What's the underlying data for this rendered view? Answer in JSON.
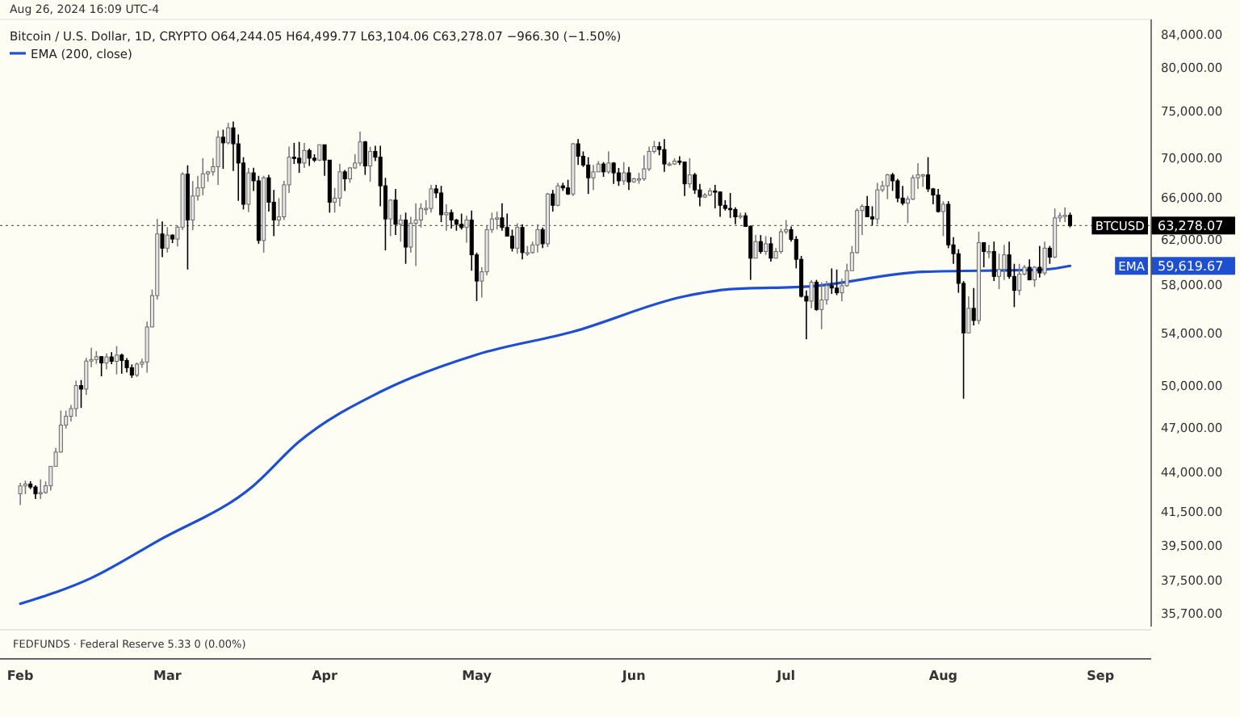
{
  "chart_data": {
    "type": "candlestick",
    "subtitle": "Aug 26, 2024 16:09 UTC-4",
    "title": "Bitcoin / U.S. Dollar, 1D, CRYPTO  O64,244.05 H64,499.77 L63,104.06 C63,278.07 −966.30 (−1.50%)",
    "x": [
      "2024-02-01",
      "2024-02-02",
      "2024-02-03",
      "2024-02-04",
      "2024-02-05",
      "2024-02-06",
      "2024-02-07",
      "2024-02-08",
      "2024-02-09",
      "2024-02-10",
      "2024-02-11",
      "2024-02-12",
      "2024-02-13",
      "2024-02-14",
      "2024-02-15",
      "2024-02-16",
      "2024-02-17",
      "2024-02-18",
      "2024-02-19",
      "2024-02-20",
      "2024-02-21",
      "2024-02-22",
      "2024-02-23",
      "2024-02-24",
      "2024-02-25",
      "2024-02-26",
      "2024-02-27",
      "2024-02-28",
      "2024-02-29",
      "2024-03-01",
      "2024-03-02",
      "2024-03-03",
      "2024-03-04",
      "2024-03-05",
      "2024-03-06",
      "2024-03-07",
      "2024-03-08",
      "2024-03-09",
      "2024-03-10",
      "2024-03-11",
      "2024-03-12",
      "2024-03-13",
      "2024-03-14",
      "2024-03-15",
      "2024-03-16",
      "2024-03-17",
      "2024-03-18",
      "2024-03-19",
      "2024-03-20",
      "2024-03-21",
      "2024-03-22",
      "2024-03-23",
      "2024-03-24",
      "2024-03-25",
      "2024-03-26",
      "2024-03-27",
      "2024-03-28",
      "2024-03-29",
      "2024-03-30",
      "2024-03-31",
      "2024-04-01",
      "2024-04-02",
      "2024-04-03",
      "2024-04-04",
      "2024-04-05",
      "2024-04-06",
      "2024-04-07",
      "2024-04-08",
      "2024-04-09",
      "2024-04-10",
      "2024-04-11",
      "2024-04-12",
      "2024-04-13",
      "2024-04-14",
      "2024-04-15",
      "2024-04-16",
      "2024-04-17",
      "2024-04-18",
      "2024-04-19",
      "2024-04-20",
      "2024-04-21",
      "2024-04-22",
      "2024-04-23",
      "2024-04-24",
      "2024-04-25",
      "2024-04-26",
      "2024-04-27",
      "2024-04-28",
      "2024-04-29",
      "2024-04-30",
      "2024-05-01",
      "2024-05-02",
      "2024-05-03",
      "2024-05-04",
      "2024-05-05",
      "2024-05-06",
      "2024-05-07",
      "2024-05-08",
      "2024-05-09",
      "2024-05-10",
      "2024-05-11",
      "2024-05-12",
      "2024-05-13",
      "2024-05-14",
      "2024-05-15",
      "2024-05-16",
      "2024-05-17",
      "2024-05-18",
      "2024-05-19",
      "2024-05-20",
      "2024-05-21",
      "2024-05-22",
      "2024-05-23",
      "2024-05-24",
      "2024-05-25",
      "2024-05-26",
      "2024-05-27",
      "2024-05-28",
      "2024-05-29",
      "2024-05-30",
      "2024-05-31",
      "2024-06-01",
      "2024-06-02",
      "2024-06-03",
      "2024-06-04",
      "2024-06-05",
      "2024-06-06",
      "2024-06-07",
      "2024-06-08",
      "2024-06-09",
      "2024-06-10",
      "2024-06-11",
      "2024-06-12",
      "2024-06-13",
      "2024-06-14",
      "2024-06-15",
      "2024-06-16",
      "2024-06-17",
      "2024-06-18",
      "2024-06-19",
      "2024-06-20",
      "2024-06-21",
      "2024-06-22",
      "2024-06-23",
      "2024-06-24",
      "2024-06-25",
      "2024-06-26",
      "2024-06-27",
      "2024-06-28",
      "2024-06-29",
      "2024-06-30",
      "2024-07-01",
      "2024-07-02",
      "2024-07-03",
      "2024-07-04",
      "2024-07-05",
      "2024-07-06",
      "2024-07-07",
      "2024-07-08",
      "2024-07-09",
      "2024-07-10",
      "2024-07-11",
      "2024-07-12",
      "2024-07-13",
      "2024-07-14",
      "2024-07-15",
      "2024-07-16",
      "2024-07-17",
      "2024-07-18",
      "2024-07-19",
      "2024-07-20",
      "2024-07-21",
      "2024-07-22",
      "2024-07-23",
      "2024-07-24",
      "2024-07-25",
      "2024-07-26",
      "2024-07-27",
      "2024-07-28",
      "2024-07-29",
      "2024-07-30",
      "2024-07-31",
      "2024-08-01",
      "2024-08-02",
      "2024-08-03",
      "2024-08-04",
      "2024-08-05",
      "2024-08-06",
      "2024-08-07",
      "2024-08-08",
      "2024-08-09",
      "2024-08-10",
      "2024-08-11",
      "2024-08-12",
      "2024-08-13",
      "2024-08-14",
      "2024-08-15",
      "2024-08-16",
      "2024-08-17",
      "2024-08-18",
      "2024-08-19",
      "2024-08-20",
      "2024-08-21",
      "2024-08-22",
      "2024-08-23",
      "2024-08-24",
      "2024-08-25",
      "2024-08-26"
    ],
    "ohlc": [
      [
        42580,
        43280,
        41880,
        43080
      ],
      [
        43080,
        43420,
        42560,
        43200
      ],
      [
        43200,
        43380,
        42880,
        43010
      ],
      [
        43010,
        43120,
        42250,
        42580
      ],
      [
        42580,
        43500,
        42260,
        42660
      ],
      [
        42660,
        43370,
        42580,
        43090
      ],
      [
        43090,
        44370,
        42790,
        44340
      ],
      [
        44340,
        45570,
        44320,
        45290
      ],
      [
        45290,
        48150,
        45250,
        47130
      ],
      [
        47130,
        48150,
        46880,
        47750
      ],
      [
        47750,
        48560,
        47380,
        48290
      ],
      [
        48290,
        50330,
        47720,
        49960
      ],
      [
        49960,
        50370,
        48340,
        49700
      ],
      [
        49700,
        52050,
        49280,
        51800
      ],
      [
        51800,
        52820,
        51330,
        51920
      ],
      [
        51920,
        52570,
        51580,
        52140
      ],
      [
        52140,
        52180,
        50650,
        51660
      ],
      [
        51660,
        52380,
        51170,
        52120
      ],
      [
        52120,
        52490,
        51560,
        51780
      ],
      [
        51780,
        52960,
        50790,
        52260
      ],
      [
        52260,
        52380,
        50840,
        51850
      ],
      [
        51850,
        52030,
        50940,
        51300
      ],
      [
        51300,
        51550,
        50530,
        50740
      ],
      [
        50740,
        51690,
        50590,
        51570
      ],
      [
        51570,
        51980,
        51290,
        51730
      ],
      [
        51730,
        54910,
        50920,
        54480
      ],
      [
        54480,
        57570,
        54460,
        57060
      ],
      [
        57060,
        63900,
        56730,
        62500
      ],
      [
        62500,
        63660,
        60400,
        61200
      ],
      [
        61200,
        63140,
        60800,
        62390
      ],
      [
        62390,
        62460,
        61660,
        62030
      ],
      [
        62030,
        63270,
        61350,
        63130
      ],
      [
        63130,
        68470,
        62880,
        68270
      ],
      [
        68270,
        69170,
        59300,
        63800
      ],
      [
        63800,
        67580,
        62850,
        66100
      ],
      [
        66100,
        68100,
        65650,
        66900
      ],
      [
        66900,
        69900,
        66170,
        68300
      ],
      [
        68300,
        68600,
        67520,
        68500
      ],
      [
        68500,
        69920,
        68120,
        69020
      ],
      [
        69020,
        72800,
        67200,
        72100
      ],
      [
        72100,
        72900,
        68800,
        71500
      ],
      [
        71500,
        73650,
        71340,
        73100
      ],
      [
        73100,
        73780,
        68600,
        71400
      ],
      [
        71400,
        72400,
        65630,
        69400
      ],
      [
        69400,
        70000,
        64800,
        65300
      ],
      [
        65300,
        68900,
        64550,
        68400
      ],
      [
        68400,
        68920,
        66600,
        67600
      ],
      [
        67600,
        68100,
        61600,
        61900
      ],
      [
        61900,
        68100,
        60800,
        67900
      ],
      [
        67900,
        68200,
        64600,
        65500
      ],
      [
        65500,
        66700,
        62300,
        63800
      ],
      [
        63800,
        65900,
        63300,
        64100
      ],
      [
        64100,
        67600,
        63800,
        67200
      ],
      [
        67200,
        71100,
        66400,
        70000
      ],
      [
        70000,
        71500,
        69300,
        69900
      ],
      [
        69900,
        71600,
        68400,
        69400
      ],
      [
        69400,
        71500,
        68900,
        70700
      ],
      [
        70700,
        70900,
        69100,
        69900
      ],
      [
        69900,
        70300,
        69500,
        69700
      ],
      [
        69700,
        71300,
        69600,
        71300
      ],
      [
        71300,
        71300,
        68100,
        69700
      ],
      [
        69700,
        69700,
        64500,
        65500
      ],
      [
        65500,
        66900,
        64500,
        65900
      ],
      [
        65900,
        69300,
        65100,
        68500
      ],
      [
        68500,
        68700,
        66600,
        67800
      ],
      [
        67800,
        69000,
        67400,
        68900
      ],
      [
        68900,
        70300,
        68800,
        69400
      ],
      [
        69400,
        72700,
        69100,
        71600
      ],
      [
        71600,
        71700,
        68200,
        69100
      ],
      [
        69100,
        71100,
        67500,
        70600
      ],
      [
        70600,
        71200,
        69600,
        70000
      ],
      [
        70000,
        71200,
        65100,
        67100
      ],
      [
        67100,
        67900,
        61000,
        63900
      ],
      [
        63900,
        65800,
        62300,
        65700
      ],
      [
        65700,
        66800,
        62400,
        63400
      ],
      [
        63400,
        64300,
        61800,
        63800
      ],
      [
        63800,
        64500,
        59800,
        61300
      ],
      [
        61300,
        64100,
        60800,
        63500
      ],
      [
        63500,
        65400,
        59600,
        63800
      ],
      [
        63800,
        65400,
        63100,
        64900
      ],
      [
        64900,
        65700,
        64300,
        64900
      ],
      [
        64900,
        67200,
        64500,
        66800
      ],
      [
        66800,
        67200,
        65900,
        66400
      ],
      [
        66400,
        67100,
        63600,
        64300
      ],
      [
        64300,
        65300,
        62800,
        64500
      ],
      [
        64500,
        64800,
        63000,
        63800
      ],
      [
        63800,
        63900,
        62800,
        63400
      ],
      [
        63400,
        64400,
        62900,
        63100
      ],
      [
        63100,
        64200,
        61700,
        63800
      ],
      [
        63800,
        64700,
        59200,
        60600
      ],
      [
        60600,
        60800,
        56600,
        58300
      ],
      [
        58300,
        59500,
        56900,
        59100
      ],
      [
        59100,
        63300,
        58800,
        62900
      ],
      [
        62900,
        64500,
        62600,
        63900
      ],
      [
        63900,
        64600,
        62900,
        64000
      ],
      [
        64000,
        65400,
        62800,
        63100
      ],
      [
        63100,
        64400,
        62300,
        62300
      ],
      [
        62300,
        62900,
        60900,
        61200
      ],
      [
        61200,
        63500,
        60700,
        63100
      ],
      [
        63100,
        63400,
        60200,
        60800
      ],
      [
        60800,
        61400,
        60500,
        60800
      ],
      [
        60800,
        61800,
        60700,
        61500
      ],
      [
        61500,
        63400,
        60800,
        62900
      ],
      [
        62900,
        63100,
        61200,
        61600
      ],
      [
        61600,
        66400,
        61300,
        66300
      ],
      [
        66300,
        66700,
        64600,
        65200
      ],
      [
        65200,
        67400,
        65100,
        67100
      ],
      [
        67100,
        67400,
        66600,
        66900
      ],
      [
        66900,
        67700,
        66200,
        66300
      ],
      [
        66300,
        71500,
        66100,
        71400
      ],
      [
        71400,
        71900,
        69200,
        70100
      ],
      [
        70100,
        70600,
        69000,
        69200
      ],
      [
        69200,
        70000,
        66300,
        67900
      ],
      [
        67900,
        69200,
        66700,
        68500
      ],
      [
        68500,
        69600,
        68500,
        69300
      ],
      [
        69300,
        69500,
        68000,
        68500
      ],
      [
        68500,
        70600,
        68300,
        69400
      ],
      [
        69400,
        69500,
        67300,
        68400
      ],
      [
        68400,
        68900,
        67100,
        67600
      ],
      [
        67600,
        69500,
        67200,
        68400
      ],
      [
        68400,
        69000,
        66700,
        67500
      ],
      [
        67500,
        67900,
        67400,
        67800
      ],
      [
        67800,
        68400,
        67300,
        67800
      ],
      [
        67800,
        70200,
        67600,
        68800
      ],
      [
        68800,
        71100,
        68600,
        70600
      ],
      [
        70600,
        71700,
        70400,
        71100
      ],
      [
        71100,
        71600,
        70200,
        70800
      ],
      [
        70800,
        71900,
        68500,
        69300
      ],
      [
        69300,
        69500,
        69100,
        69300
      ],
      [
        69300,
        69900,
        69200,
        69600
      ],
      [
        69600,
        70100,
        69200,
        69500
      ],
      [
        69500,
        69500,
        66100,
        67300
      ],
      [
        67300,
        69900,
        66900,
        68200
      ],
      [
        68200,
        68400,
        66300,
        66700
      ],
      [
        66700,
        67300,
        65100,
        66000
      ],
      [
        66000,
        66400,
        65900,
        66200
      ],
      [
        66200,
        66900,
        66100,
        66600
      ],
      [
        66600,
        67200,
        64900,
        66500
      ],
      [
        66500,
        66500,
        64100,
        65200
      ],
      [
        65200,
        65700,
        64700,
        64900
      ],
      [
        64900,
        66400,
        64000,
        64800
      ],
      [
        64800,
        65000,
        63400,
        64100
      ],
      [
        64100,
        64500,
        63900,
        64200
      ],
      [
        64200,
        64500,
        63200,
        63200
      ],
      [
        63200,
        63300,
        58400,
        60300
      ],
      [
        60300,
        62400,
        60300,
        61800
      ],
      [
        61800,
        62400,
        60700,
        60900
      ],
      [
        60900,
        62300,
        60600,
        61600
      ],
      [
        61600,
        62200,
        60000,
        60300
      ],
      [
        60300,
        61200,
        60300,
        60900
      ],
      [
        60900,
        63000,
        60700,
        62700
      ],
      [
        62700,
        63800,
        62500,
        62900
      ],
      [
        62900,
        63200,
        61800,
        62000
      ],
      [
        62000,
        62300,
        59400,
        60200
      ],
      [
        60200,
        60500,
        56900,
        57000
      ],
      [
        57000,
        57500,
        53500,
        56600
      ],
      [
        56600,
        58400,
        56000,
        58200
      ],
      [
        58200,
        58400,
        55800,
        55900
      ],
      [
        55900,
        58200,
        54300,
        56700
      ],
      [
        56700,
        58300,
        56300,
        57900
      ],
      [
        57900,
        59400,
        57200,
        57700
      ],
      [
        57700,
        59300,
        57100,
        57300
      ],
      [
        57300,
        58500,
        56600,
        57900
      ],
      [
        57900,
        59800,
        57800,
        59200
      ],
      [
        59200,
        61400,
        59200,
        60800
      ],
      [
        60800,
        64900,
        60700,
        64700
      ],
      [
        64700,
        65300,
        62400,
        65100
      ],
      [
        65100,
        66100,
        64100,
        64100
      ],
      [
        64100,
        65100,
        63300,
        63900
      ],
      [
        63900,
        67400,
        63400,
        66700
      ],
      [
        66700,
        67600,
        66500,
        67100
      ],
      [
        67100,
        68300,
        65800,
        68200
      ],
      [
        68200,
        68400,
        66600,
        67600
      ],
      [
        67600,
        67800,
        65500,
        65900
      ],
      [
        65900,
        67100,
        65200,
        65400
      ],
      [
        65400,
        66100,
        63500,
        65800
      ],
      [
        65800,
        68200,
        65700,
        67900
      ],
      [
        67900,
        69400,
        66800,
        68200
      ],
      [
        68200,
        68300,
        67000,
        68200
      ],
      [
        68200,
        70000,
        66500,
        66800
      ],
      [
        66800,
        66900,
        65300,
        66200
      ],
      [
        66200,
        66800,
        64500,
        64600
      ],
      [
        64600,
        65600,
        62300,
        65300
      ],
      [
        65300,
        65600,
        61200,
        61500
      ],
      [
        61500,
        62200,
        59800,
        60700
      ],
      [
        60700,
        61100,
        57300,
        58100
      ],
      [
        58100,
        58300,
        49000,
        54000
      ],
      [
        54000,
        57000,
        54000,
        56000
      ],
      [
        56000,
        57700,
        54600,
        55000
      ],
      [
        55000,
        62700,
        54700,
        61700
      ],
      [
        61700,
        61700,
        59500,
        60900
      ],
      [
        60900,
        61500,
        60300,
        60900
      ],
      [
        60900,
        61800,
        58300,
        58700
      ],
      [
        58700,
        60700,
        57600,
        59300
      ],
      [
        59300,
        61500,
        58400,
        60600
      ],
      [
        60600,
        61800,
        58500,
        58700
      ],
      [
        58700,
        59800,
        56100,
        57500
      ],
      [
        57500,
        59800,
        57100,
        58900
      ],
      [
        58900,
        59700,
        58800,
        59500
      ],
      [
        59500,
        60200,
        58400,
        58400
      ],
      [
        58400,
        59600,
        57800,
        59500
      ],
      [
        59500,
        61400,
        58600,
        59000
      ],
      [
        59000,
        61800,
        58800,
        61200
      ],
      [
        61200,
        61400,
        59800,
        60400
      ],
      [
        60400,
        64900,
        60300,
        64000
      ],
      [
        64000,
        64500,
        63600,
        64200
      ],
      [
        64200,
        65000,
        63600,
        64244.05
      ],
      [
        64244.05,
        64499.77,
        63104.06,
        63278.07
      ]
    ],
    "series": [
      {
        "name": "EMA (200, close)",
        "type": "line",
        "color": "#1f4fd1",
        "x": [
          "2024-02-01",
          "2024-02-15",
          "2024-02-28",
          "2024-03-18",
          "2024-03-27",
          "2024-04-12",
          "2024-05-01",
          "2024-05-20",
          "2024-06-11",
          "2024-06-20",
          "2024-07-06",
          "2024-07-28",
          "2024-08-21",
          "2024-08-26"
        ],
        "values": [
          36200,
          37600,
          39700,
          43100,
          46000,
          49500,
          52300,
          54100,
          57000,
          57600,
          57850,
          59100,
          59300,
          59619.67
        ]
      }
    ],
    "xlim": [
      "2024-01-28",
      "2024-09-11"
    ],
    "xticks": [
      {
        "value": "2024-02-01",
        "label": "Feb"
      },
      {
        "value": "2024-03-01",
        "label": "Mar"
      },
      {
        "value": "2024-04-01",
        "label": "Apr"
      },
      {
        "value": "2024-05-01",
        "label": "May"
      },
      {
        "value": "2024-06-01",
        "label": "Jun"
      },
      {
        "value": "2024-07-01",
        "label": "Jul"
      },
      {
        "value": "2024-08-01",
        "label": "Aug"
      },
      {
        "value": "2024-09-01",
        "label": "Sep"
      }
    ],
    "ylim": [
      35000,
      85800
    ],
    "log": true,
    "yticks": [
      {
        "value": 84000,
        "label": "84,000.00"
      },
      {
        "value": 80000,
        "label": "80,000.00"
      },
      {
        "value": 75000,
        "label": "75,000.00"
      },
      {
        "value": 70000,
        "label": "70,000.00"
      },
      {
        "value": 66000,
        "label": "66,000.00"
      },
      {
        "value": 62000,
        "label": "62,000.00"
      },
      {
        "value": 58000,
        "label": "58,000.00"
      },
      {
        "value": 54000,
        "label": "54,000.00"
      },
      {
        "value": 50000,
        "label": "50,000.00"
      },
      {
        "value": 47000,
        "label": "47,000.00"
      },
      {
        "value": 44000,
        "label": "44,000.00"
      },
      {
        "value": 41500,
        "label": "41,500.00"
      },
      {
        "value": 39500,
        "label": "39,500.00"
      },
      {
        "value": 37500,
        "label": "37,500.00"
      },
      {
        "value": 35700,
        "label": "35,700.00"
      }
    ],
    "ref_lines": [
      {
        "axis": "y",
        "value": 63278.07,
        "color": "#000000",
        "line_style": "dotted"
      }
    ],
    "annotations": [
      "BTCUSD 63,278.07",
      "EMA 59,619.67",
      "FEDFUNDS · Federal Reserve  5.33  0 (0.00%)"
    ],
    "legend": "top left"
  }
}
